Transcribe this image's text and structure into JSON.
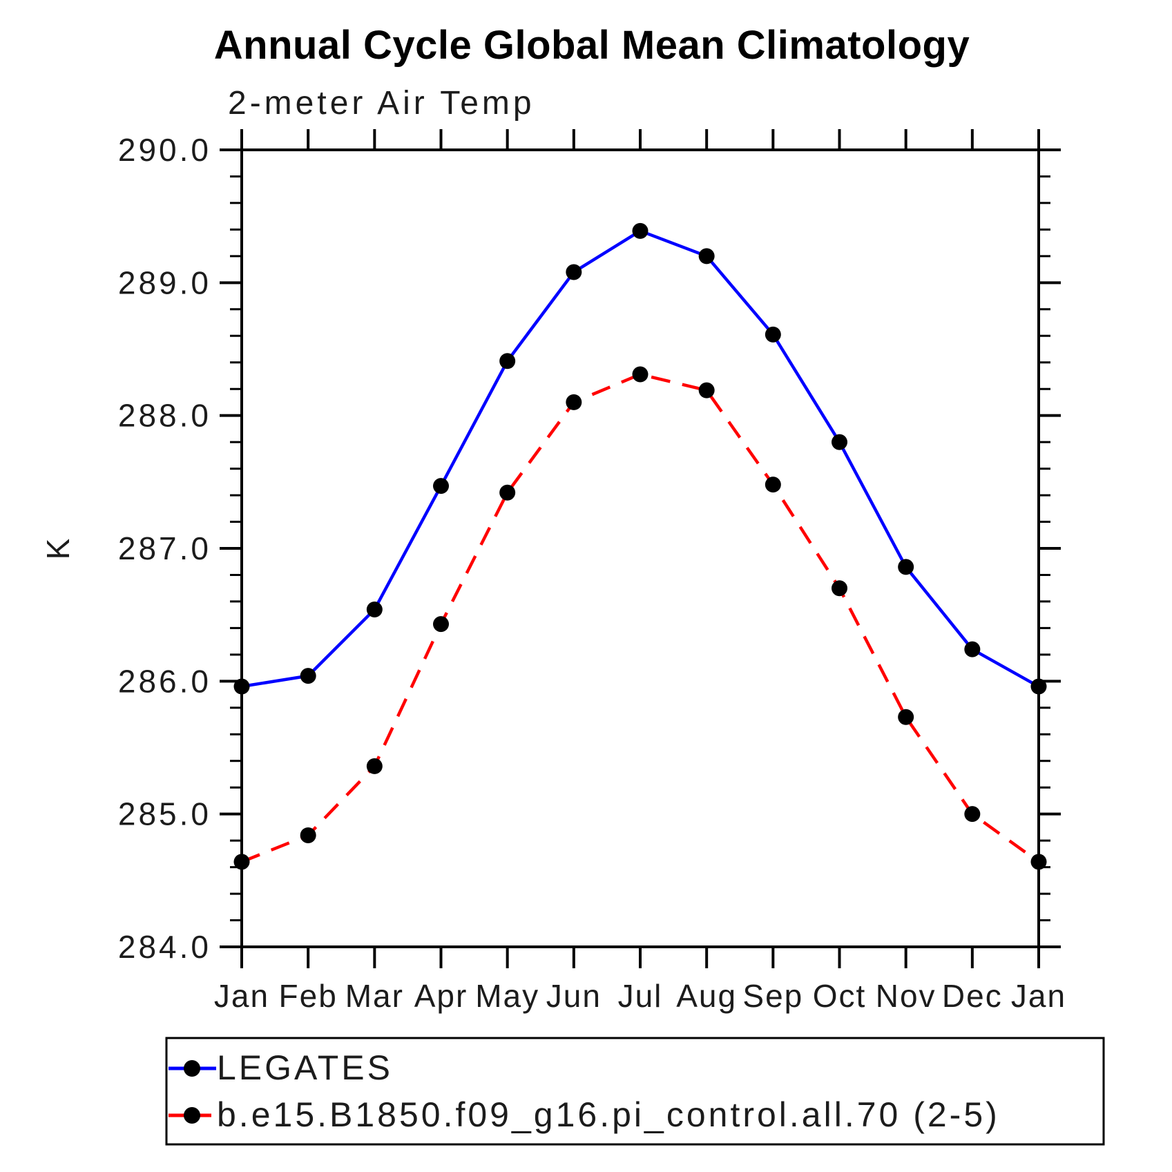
{
  "chart_data": {
    "type": "line",
    "title": "Annual Cycle Global Mean Climatology",
    "subtitle": "2-meter Air Temp",
    "ylabel": "K",
    "x_categories": [
      "Jan",
      "Feb",
      "Mar",
      "Apr",
      "May",
      "Jun",
      "Jul",
      "Aug",
      "Sep",
      "Oct",
      "Nov",
      "Dec",
      "Jan"
    ],
    "ylim": [
      284.0,
      290.0
    ],
    "ytick_step": 1.0,
    "yminor_step": 0.2,
    "ytick_labels": [
      "290.0",
      "289.0",
      "288.0",
      "287.0",
      "286.0",
      "285.0",
      "284.0"
    ],
    "grid": "off",
    "legend_position": "bottom",
    "series": [
      {
        "name": "LEGATES",
        "color": "#0000ff",
        "style": "solid",
        "marker": "filled-circle",
        "marker_color": "#000000",
        "values": [
          285.96,
          286.04,
          286.54,
          287.47,
          288.41,
          289.08,
          289.39,
          289.2,
          288.61,
          287.8,
          286.86,
          286.24,
          285.96
        ]
      },
      {
        "name": "b.e15.B1850.f09_g16.pi_control.all.70 (2-5)",
        "color": "#ff0000",
        "style": "dashed",
        "marker": "filled-circle",
        "marker_color": "#000000",
        "values": [
          284.64,
          284.84,
          285.36,
          286.43,
          287.42,
          288.1,
          288.31,
          288.19,
          287.48,
          286.7,
          285.73,
          285.0,
          284.64
        ]
      }
    ],
    "axis_color": "#000000"
  }
}
